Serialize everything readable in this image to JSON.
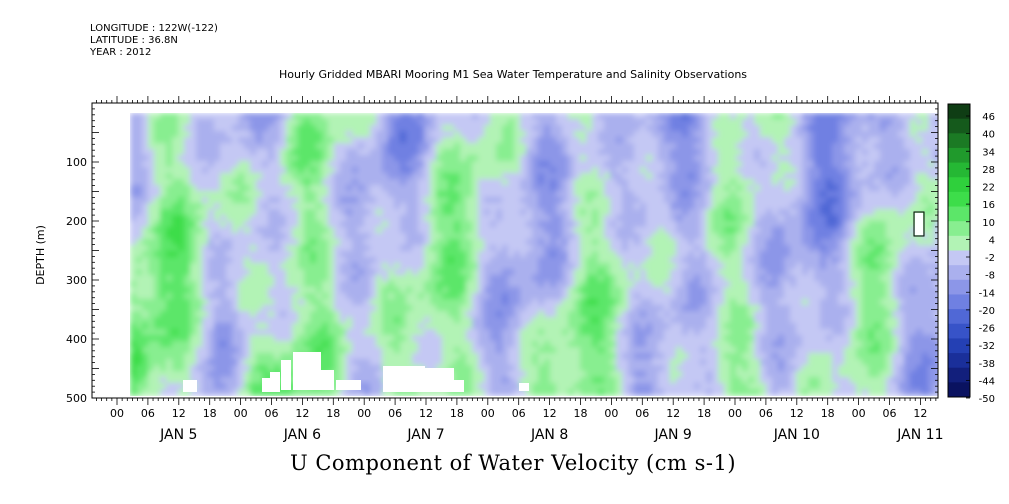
{
  "header": {
    "longitude": "LONGITUDE : 122W(-122)",
    "latitude": "LATITUDE : 36.8N",
    "year": "YEAR : 2012",
    "title": "Hourly Gridded MBARI Mooring M1 Sea Water Temperature and Salinity Observations"
  },
  "footer": {
    "variable_label": "U Component of Water Velocity (cm s-1)"
  },
  "chart_data": {
    "type": "heatmap",
    "title": "Hourly Gridded MBARI Mooring M1 Sea Water Temperature and Salinity Observations",
    "xlabel": "",
    "ylabel": "DEPTH (m)",
    "ylim": [
      500,
      0
    ],
    "y_ticks": [
      100,
      200,
      300,
      400,
      500
    ],
    "y_tick_labels": [
      "100",
      "200",
      "300",
      "400",
      "500"
    ],
    "x_hour_tick_labels": [
      "00",
      "06",
      "12",
      "18",
      "00",
      "06",
      "12",
      "18",
      "00",
      "06",
      "12",
      "18",
      "00",
      "06",
      "12",
      "18",
      "00",
      "06",
      "12",
      "18",
      "00",
      "06",
      "12",
      "18",
      "00",
      "06",
      "12"
    ],
    "day_labels": [
      "JAN 5",
      "JAN 6",
      "JAN 7",
      "JAN 8",
      "JAN 9",
      "JAN 10",
      "JAN 11"
    ],
    "colorbar_labels": [
      "46",
      "40",
      "34",
      "28",
      "22",
      "16",
      "10",
      "4",
      "-2",
      "-8",
      "-14",
      "-20",
      "-26",
      "-32",
      "-38",
      "-44",
      "-50"
    ],
    "colorbar_colors": [
      "#0f3d14",
      "#155a1c",
      "#1b7a24",
      "#209a2c",
      "#25b834",
      "#2fd03c",
      "#3ddd4a",
      "#5ce669",
      "#88ee90",
      "#b2f3b5",
      "#c4c8f4",
      "#aab0ee",
      "#8c96e8",
      "#6f80e2",
      "#5068d6",
      "#3753c8",
      "#2440b4",
      "#1a2f9a",
      "#121f7c",
      "#0a1260"
    ],
    "grid": false,
    "legend": "colorbar-right"
  }
}
